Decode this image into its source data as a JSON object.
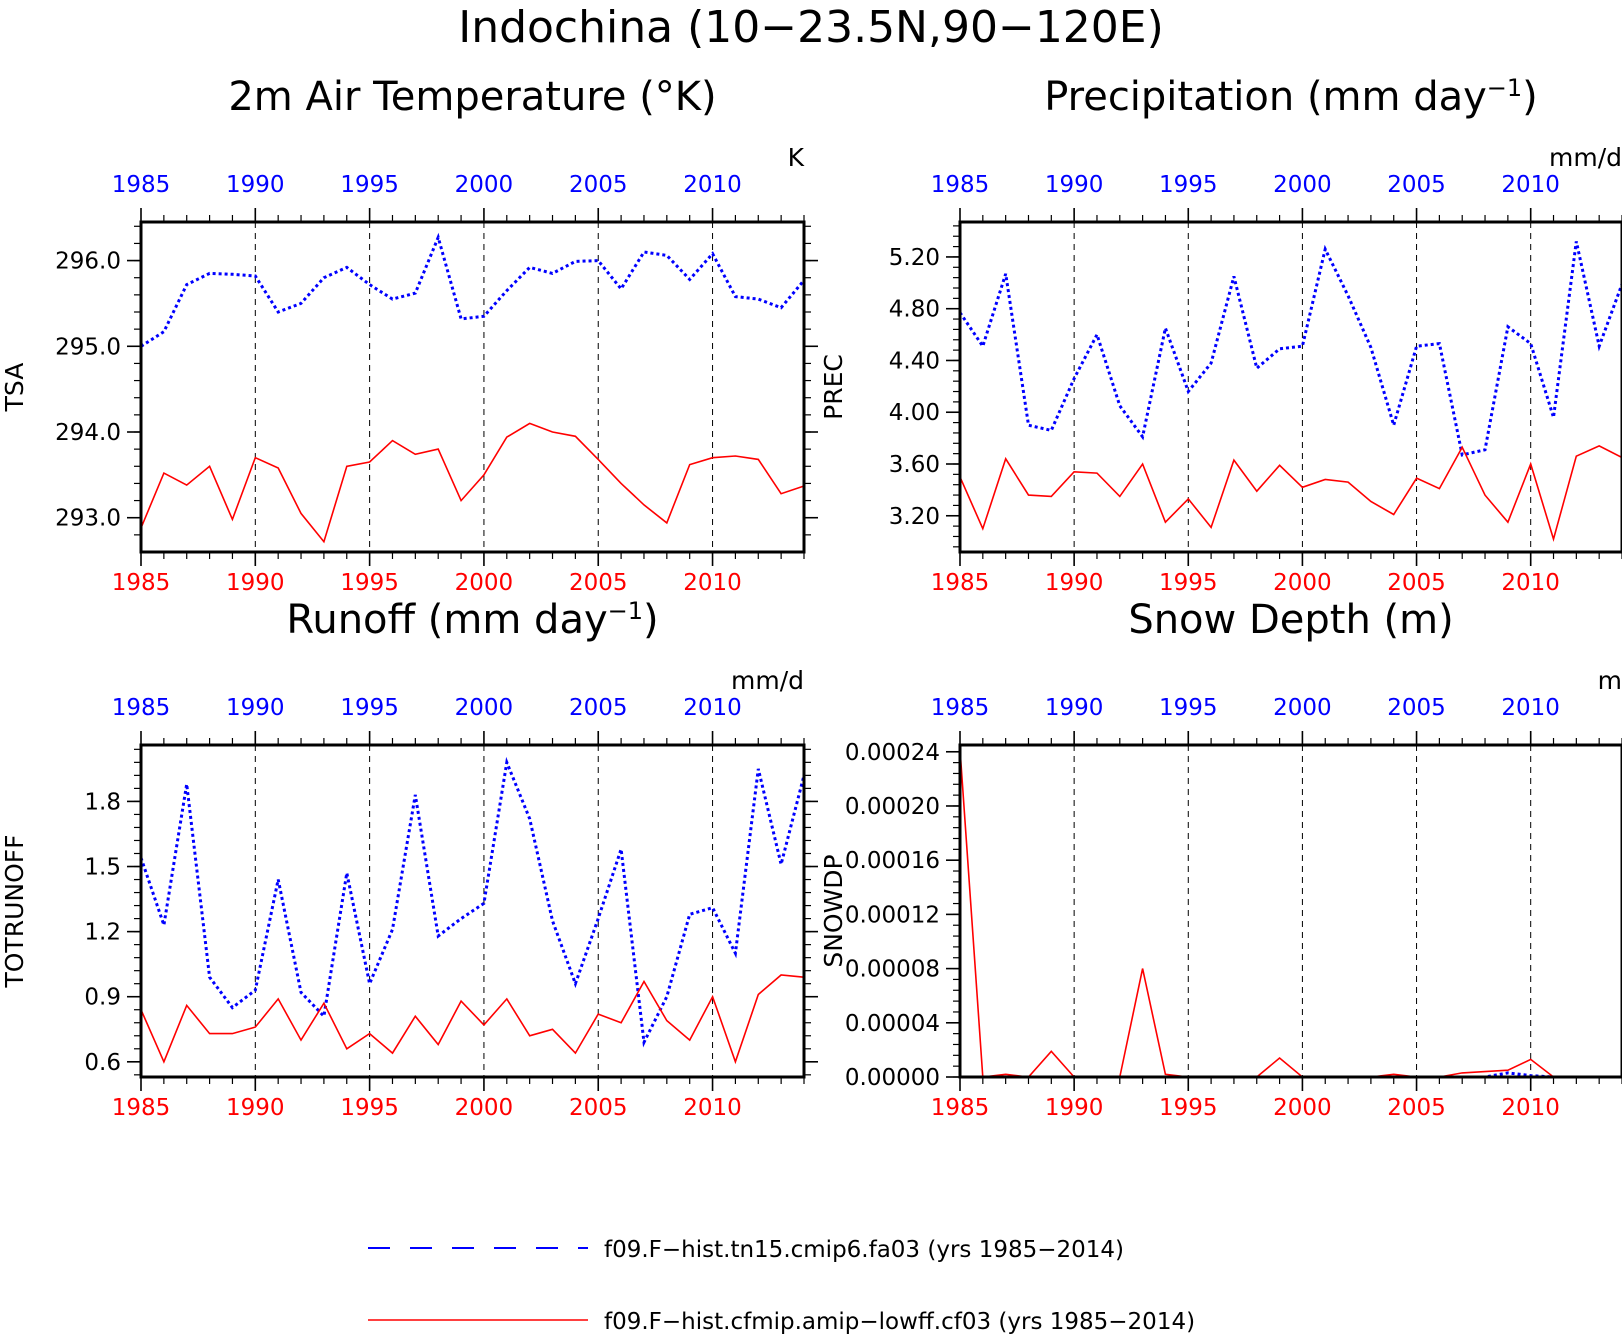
{
  "figure": {
    "title": "Indochina (10−23.5N,90−120E)"
  },
  "colors": {
    "series_a": "#0000ff",
    "series_b": "#ff0000",
    "axis": "#000000",
    "top_tick_labels": "#0000ff",
    "bottom_tick_labels": "#ff0000"
  },
  "legend": {
    "placement": "bottom-center",
    "entries": [
      {
        "label": "f09.F−hist.tn15.cmip6.fa03 (yrs 1985−2014)",
        "style": "dashed",
        "color": "#0000ff"
      },
      {
        "label": "f09.F−hist.cfmip.amip−lowff.cf03 (yrs 1985−2014)",
        "style": "solid",
        "color": "#ff0000"
      }
    ]
  },
  "chart_data": [
    {
      "type": "line",
      "title": "2m Air Temperature (°K)",
      "title_sup": "",
      "title_after": "",
      "ylabel": "TSA",
      "units": "K",
      "xlim": [
        1985,
        2014
      ],
      "ylim": [
        292.6,
        296.45
      ],
      "yticks": [
        293.0,
        294.0,
        295.0,
        296.0
      ],
      "ytick_labels": [
        "293.0",
        "294.0",
        "295.0",
        "296.0"
      ],
      "xticks": [
        1985,
        1990,
        1995,
        2000,
        2005,
        2010
      ],
      "xtick_labels": [
        "1985",
        "1990",
        "1995",
        "2000",
        "2005",
        "2010"
      ],
      "x": [
        1985,
        1986,
        1987,
        1988,
        1989,
        1990,
        1991,
        1992,
        1993,
        1994,
        1995,
        1996,
        1997,
        1998,
        1999,
        2000,
        2001,
        2002,
        2003,
        2004,
        2005,
        2006,
        2007,
        2008,
        2009,
        2010,
        2011,
        2012,
        2013,
        2014
      ],
      "series": [
        {
          "name": "f09.F−hist.tn15.cmip6.fa03",
          "style": "dashed",
          "values": [
            295.0,
            295.17,
            295.72,
            295.85,
            295.84,
            295.82,
            295.4,
            295.5,
            295.8,
            295.92,
            295.72,
            295.55,
            295.62,
            296.27,
            295.32,
            295.35,
            295.65,
            295.92,
            295.85,
            295.99,
            296.0,
            295.67,
            296.1,
            296.06,
            295.78,
            296.08,
            295.58,
            295.55,
            295.45,
            295.77
          ]
        },
        {
          "name": "f09.F−hist.cfmip.amip−lowff.cf03",
          "style": "solid",
          "values": [
            292.88,
            293.52,
            293.38,
            293.6,
            292.98,
            293.7,
            293.58,
            293.05,
            292.72,
            293.6,
            293.65,
            293.9,
            293.74,
            293.8,
            293.2,
            293.5,
            293.94,
            294.1,
            294.0,
            293.95,
            293.68,
            293.4,
            293.15,
            292.94,
            293.62,
            293.7,
            293.72,
            293.68,
            293.28,
            293.37
          ]
        }
      ]
    },
    {
      "type": "line",
      "title": "Precipitation (mm day",
      "title_sup": "−1",
      "title_after": ")",
      "ylabel": "PREC",
      "units": "mm/d",
      "xlim": [
        1985,
        2014
      ],
      "ylim": [
        2.92,
        5.47
      ],
      "yticks": [
        3.2,
        3.6,
        4.0,
        4.4,
        4.8,
        5.2
      ],
      "ytick_labels": [
        "3.20",
        "3.60",
        "4.00",
        "4.40",
        "4.80",
        "5.20"
      ],
      "xticks": [
        1985,
        1990,
        1995,
        2000,
        2005,
        2010
      ],
      "xtick_labels": [
        "1985",
        "1990",
        "1995",
        "2000",
        "2005",
        "2010"
      ],
      "x": [
        1985,
        1986,
        1987,
        1988,
        1989,
        1990,
        1991,
        1992,
        1993,
        1994,
        1995,
        1996,
        1997,
        1998,
        1999,
        2000,
        2001,
        2002,
        2003,
        2004,
        2005,
        2006,
        2007,
        2008,
        2009,
        2010,
        2011,
        2012,
        2013,
        2014
      ],
      "series": [
        {
          "name": "f09.F−hist.tn15.cmip6.fa03",
          "style": "dashed",
          "values": [
            4.77,
            4.51,
            5.07,
            3.9,
            3.86,
            4.26,
            4.6,
            4.05,
            3.81,
            4.65,
            4.16,
            4.38,
            5.05,
            4.34,
            4.49,
            4.51,
            5.26,
            4.9,
            4.5,
            3.9,
            4.51,
            4.53,
            3.67,
            3.71,
            4.66,
            4.53,
            3.96,
            5.32,
            4.51,
            4.99
          ]
        },
        {
          "name": "f09.F−hist.cfmip.amip−lowff.cf03",
          "style": "solid",
          "values": [
            3.5,
            3.1,
            3.64,
            3.36,
            3.35,
            3.54,
            3.53,
            3.35,
            3.6,
            3.15,
            3.33,
            3.11,
            3.63,
            3.39,
            3.59,
            3.42,
            3.48,
            3.46,
            3.31,
            3.21,
            3.49,
            3.41,
            3.73,
            3.36,
            3.15,
            3.6,
            3.02,
            3.66,
            3.74,
            3.65
          ]
        }
      ]
    },
    {
      "type": "line",
      "title": "Runoff (mm day",
      "title_sup": "−1",
      "title_after": ")",
      "ylabel": "TOTRUNOFF",
      "units": "mm/d",
      "xlim": [
        1985,
        2014
      ],
      "ylim": [
        0.53,
        2.06
      ],
      "yticks": [
        0.6,
        0.9,
        1.2,
        1.5,
        1.8
      ],
      "ytick_labels": [
        "0.6",
        "0.9",
        "1.2",
        "1.5",
        "1.8"
      ],
      "xticks": [
        1985,
        1990,
        1995,
        2000,
        2005,
        2010
      ],
      "xtick_labels": [
        "1985",
        "1990",
        "1995",
        "2000",
        "2005",
        "2010"
      ],
      "x": [
        1985,
        1986,
        1987,
        1988,
        1989,
        1990,
        1991,
        1992,
        1993,
        1994,
        1995,
        1996,
        1997,
        1998,
        1999,
        2000,
        2001,
        2002,
        2003,
        2004,
        2005,
        2006,
        2007,
        2008,
        2009,
        2010,
        2011,
        2012,
        2013,
        2014
      ],
      "series": [
        {
          "name": "f09.F−hist.tn15.cmip6.fa03",
          "style": "dashed",
          "values": [
            1.54,
            1.23,
            1.88,
            0.99,
            0.85,
            0.93,
            1.44,
            0.92,
            0.81,
            1.47,
            0.96,
            1.21,
            1.83,
            1.18,
            1.26,
            1.33,
            1.98,
            1.72,
            1.25,
            0.96,
            1.26,
            1.58,
            0.69,
            0.9,
            1.28,
            1.31,
            1.1,
            1.95,
            1.51,
            1.92
          ]
        },
        {
          "name": "f09.F−hist.cfmip.amip−lowff.cf03",
          "style": "solid",
          "values": [
            0.84,
            0.6,
            0.86,
            0.73,
            0.73,
            0.76,
            0.89,
            0.7,
            0.87,
            0.66,
            0.73,
            0.64,
            0.81,
            0.68,
            0.88,
            0.77,
            0.89,
            0.72,
            0.75,
            0.64,
            0.82,
            0.78,
            0.97,
            0.79,
            0.7,
            0.9,
            0.6,
            0.91,
            1.0,
            0.99
          ]
        }
      ]
    },
    {
      "type": "line",
      "title": "Snow Depth (m)",
      "title_sup": "",
      "title_after": "",
      "ylabel": "SNOWDP",
      "units": "m",
      "xlim": [
        1985,
        2014
      ],
      "ylim": [
        0.0,
        0.000245
      ],
      "yticks": [
        0.0,
        4e-05,
        8e-05,
        0.00012,
        0.00016,
        0.0002,
        0.00024
      ],
      "ytick_labels": [
        "0.00000",
        "0.00004",
        "0.00008",
        "0.00012",
        "0.00016",
        "0.00020",
        "0.00024"
      ],
      "xticks": [
        1985,
        1990,
        1995,
        2000,
        2005,
        2010
      ],
      "xtick_labels": [
        "1985",
        "1990",
        "1995",
        "2000",
        "2005",
        "2010"
      ],
      "x": [
        1985,
        1986,
        1987,
        1988,
        1989,
        1990,
        1991,
        1992,
        1993,
        1994,
        1995,
        1996,
        1997,
        1998,
        1999,
        2000,
        2001,
        2002,
        2003,
        2004,
        2005,
        2006,
        2007,
        2008,
        2009,
        2010,
        2011,
        2012,
        2013,
        2014
      ],
      "series": [
        {
          "name": "f09.F−hist.tn15.cmip6.fa03",
          "style": "dashed",
          "values": [
            0,
            0,
            0,
            0,
            0,
            0,
            0,
            0,
            0,
            0,
            0,
            0,
            0,
            0,
            0,
            0,
            0,
            0,
            0,
            0,
            0,
            0,
            0,
            0,
            3e-06,
            1e-06,
            0,
            0,
            0,
            0
          ]
        },
        {
          "name": "f09.F−hist.cfmip.amip−lowff.cf03",
          "style": "solid",
          "values": [
            0.000242,
            0,
            2e-06,
            0,
            1.9e-05,
            0,
            0,
            0,
            8e-05,
            2e-06,
            0,
            0,
            0,
            0,
            1.4e-05,
            0,
            0,
            0,
            0,
            2e-06,
            0,
            0,
            3e-06,
            4e-06,
            5e-06,
            1.3e-05,
            0,
            0,
            0,
            0
          ]
        }
      ]
    }
  ]
}
